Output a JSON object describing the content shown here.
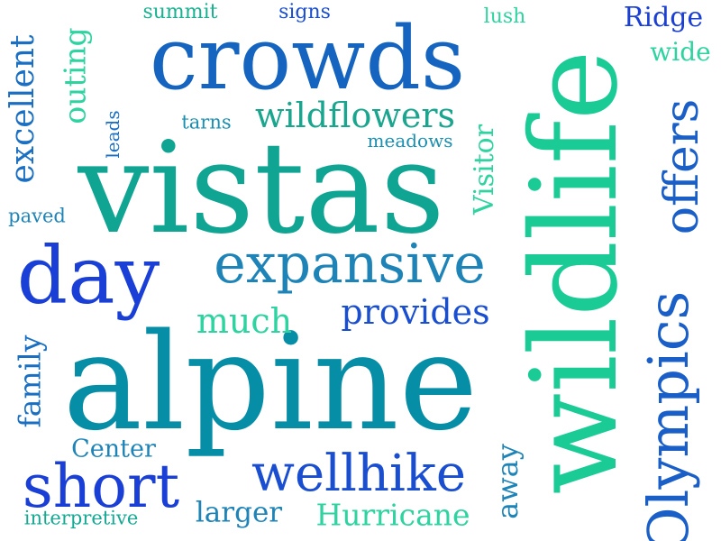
{
  "word_cloud": {
    "words": [
      {
        "text": "alpine",
        "color": "#078EA7"
      },
      {
        "text": "vistas",
        "color": "#10A593"
      },
      {
        "text": "wildlife",
        "color": "#1ACB95"
      },
      {
        "text": "crowds",
        "color": "#1565C0"
      },
      {
        "text": "Olympics",
        "color": "#1A5FC8"
      },
      {
        "text": "offers",
        "color": "#1A5FC8"
      },
      {
        "text": "day",
        "color": "#1A3FD6"
      },
      {
        "text": "expansive",
        "color": "#1E84B8"
      },
      {
        "text": "short",
        "color": "#1A3FD6"
      },
      {
        "text": "wellhike",
        "color": "#1A4ED0"
      },
      {
        "text": "wildflowers",
        "color": "#19A58E"
      },
      {
        "text": "provides",
        "color": "#1A4ED0"
      },
      {
        "text": "much",
        "color": "#2ED3A0"
      },
      {
        "text": "Hurricane",
        "color": "#2ED3A0"
      },
      {
        "text": "excellent",
        "color": "#1A6FC2"
      },
      {
        "text": "outing",
        "color": "#2ED3A0"
      },
      {
        "text": "Visitor",
        "color": "#2ED3A0"
      },
      {
        "text": "away",
        "color": "#1E84B8"
      },
      {
        "text": "family",
        "color": "#1A6FC2"
      },
      {
        "text": "Ridge",
        "color": "#1A3FD6"
      },
      {
        "text": "wide",
        "color": "#2ED3A0"
      },
      {
        "text": "Center",
        "color": "#1E84B8"
      },
      {
        "text": "larger",
        "color": "#1E84B8"
      },
      {
        "text": "interpretive",
        "color": "#15A893"
      },
      {
        "text": "summit",
        "color": "#19B290"
      },
      {
        "text": "signs",
        "color": "#1A4ED0"
      },
      {
        "text": "lush",
        "color": "#2ED3A0"
      },
      {
        "text": "tarns",
        "color": "#1A8FB0"
      },
      {
        "text": "meadows",
        "color": "#1A8FB0"
      },
      {
        "text": "leads",
        "color": "#1A6FC2"
      },
      {
        "text": "paved",
        "color": "#1E84B8"
      }
    ]
  }
}
